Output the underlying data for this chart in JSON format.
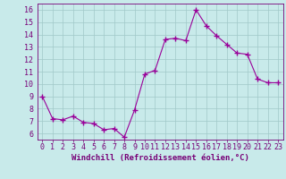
{
  "x": [
    0,
    1,
    2,
    3,
    4,
    5,
    6,
    7,
    8,
    9,
    10,
    11,
    12,
    13,
    14,
    15,
    16,
    17,
    18,
    19,
    20,
    21,
    22,
    23
  ],
  "y": [
    9,
    7.2,
    7.1,
    7.4,
    6.9,
    6.8,
    6.3,
    6.4,
    5.7,
    7.9,
    10.8,
    11.1,
    13.6,
    13.7,
    13.5,
    16.0,
    14.7,
    13.9,
    13.2,
    12.5,
    12.4,
    10.4,
    10.1,
    10.1
  ],
  "line_color": "#990099",
  "marker": "+",
  "marker_size": 4,
  "bg_color": "#c8eaea",
  "grid_color": "#a0c8c8",
  "xlabel": "Windchill (Refroidissement éolien,°C)",
  "xlabel_fontsize": 6.5,
  "xlabel_color": "#770077",
  "tick_color": "#770077",
  "tick_fontsize": 6.0,
  "ylim": [
    5.5,
    16.5
  ],
  "yticks": [
    6,
    7,
    8,
    9,
    10,
    11,
    12,
    13,
    14,
    15,
    16
  ],
  "xlim": [
    -0.5,
    23.5
  ],
  "xticks": [
    0,
    1,
    2,
    3,
    4,
    5,
    6,
    7,
    8,
    9,
    10,
    11,
    12,
    13,
    14,
    15,
    16,
    17,
    18,
    19,
    20,
    21,
    22,
    23
  ]
}
